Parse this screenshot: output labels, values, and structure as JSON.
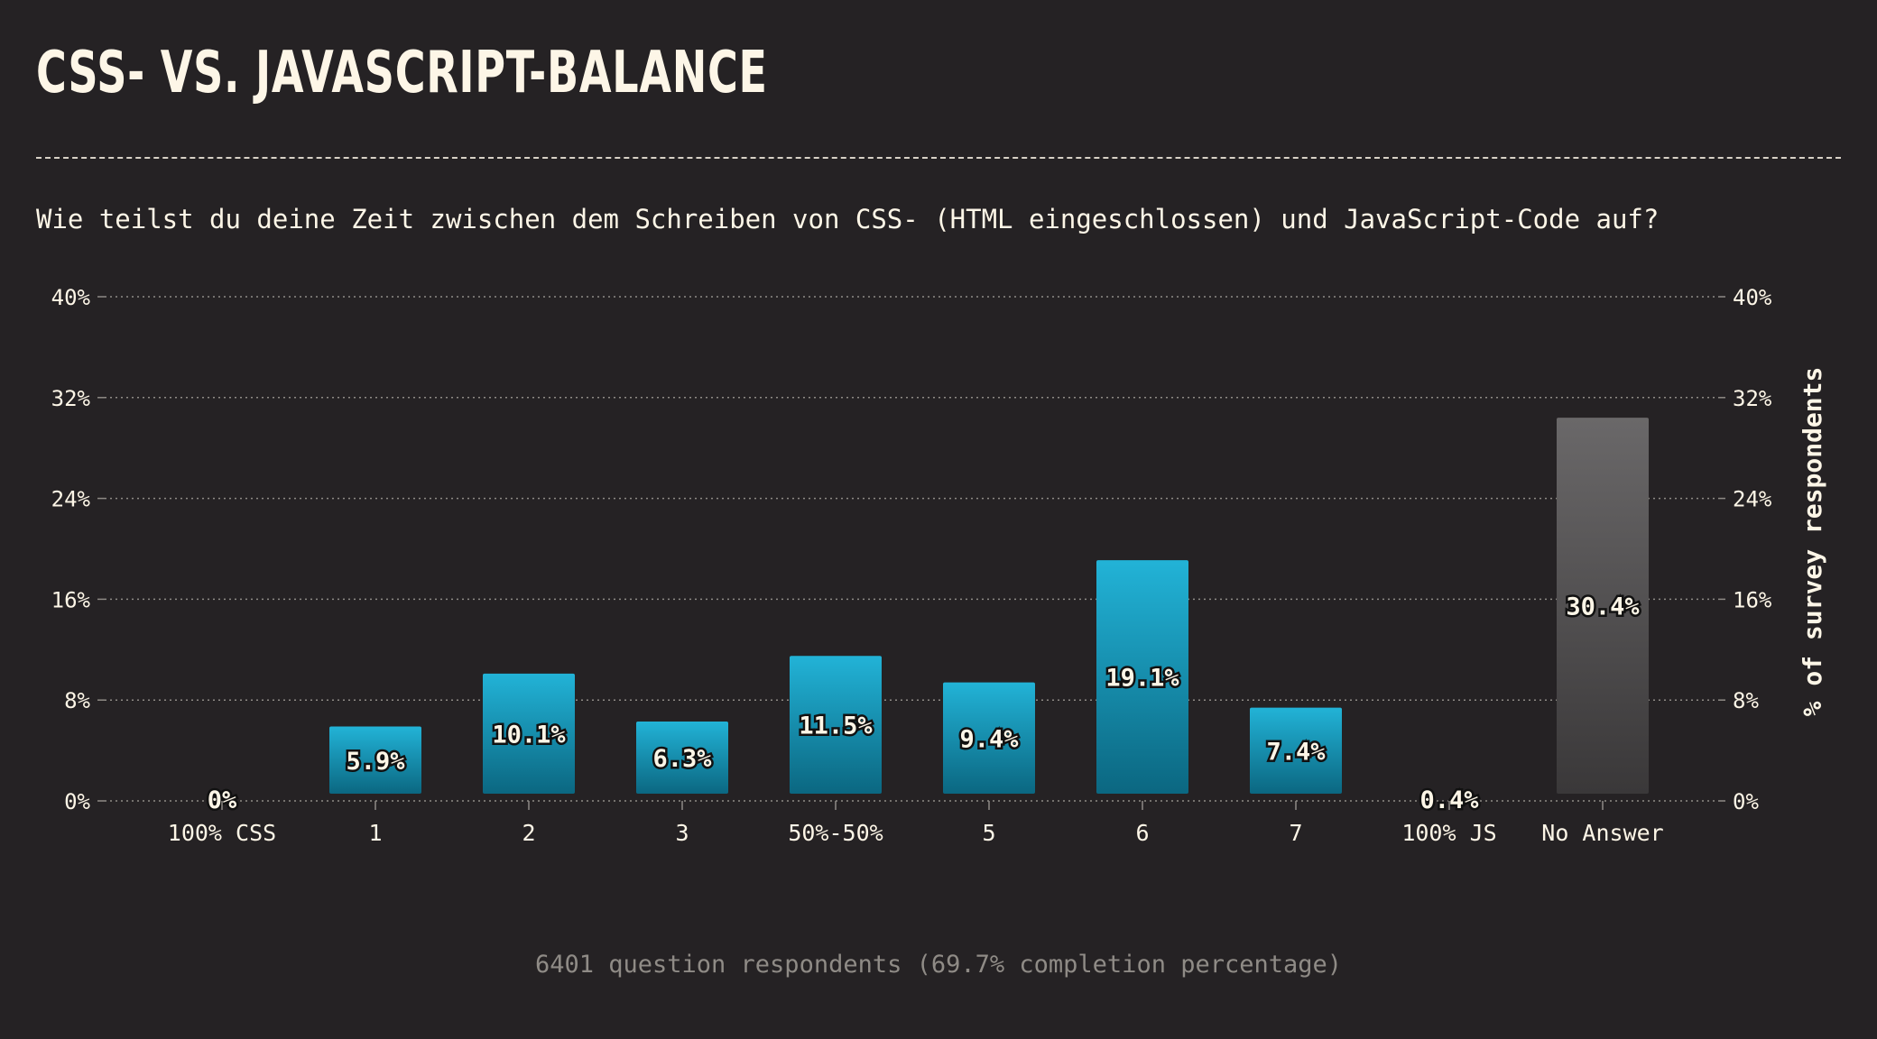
{
  "title": "CSS- VS. JAVASCRIPT-BALANCE",
  "question": "Wie teilst du deine Zeit zwischen dem Schreiben von CSS- (HTML eingeschlossen) und JavaScript-Code auf?",
  "footnote": "6401 question respondents (69.7% completion percentage)",
  "colors": {
    "background": "#252224",
    "text": "#fdf6e7",
    "bar_top": "#22b3d7",
    "bar_bottom": "#0b6781",
    "no_answer_top": "#6a6869",
    "no_answer_bottom": "#3a3839",
    "grid": "#8f8b86",
    "footnote": "#8f8b86"
  },
  "chart_data": {
    "type": "bar",
    "categories": [
      "100% CSS",
      "1",
      "2",
      "3",
      "50%-50%",
      "5",
      "6",
      "7",
      "100% JS",
      "No Answer"
    ],
    "values": [
      0,
      5.9,
      10.1,
      6.3,
      11.5,
      9.4,
      19.1,
      7.4,
      0.4,
      30.4
    ],
    "value_labels": [
      "0%",
      "5.9%",
      "10.1%",
      "6.3%",
      "11.5%",
      "9.4%",
      "19.1%",
      "7.4%",
      "0.4%",
      "30.4%"
    ],
    "ylabel": "% of survey respondents",
    "ylim": [
      0,
      40
    ],
    "yticks": [
      "0%",
      "8%",
      "16%",
      "24%",
      "32%",
      "40%"
    ],
    "ytick_values": [
      0,
      8,
      16,
      24,
      32,
      40
    ],
    "grid": true,
    "y_axis_sides": "both"
  }
}
